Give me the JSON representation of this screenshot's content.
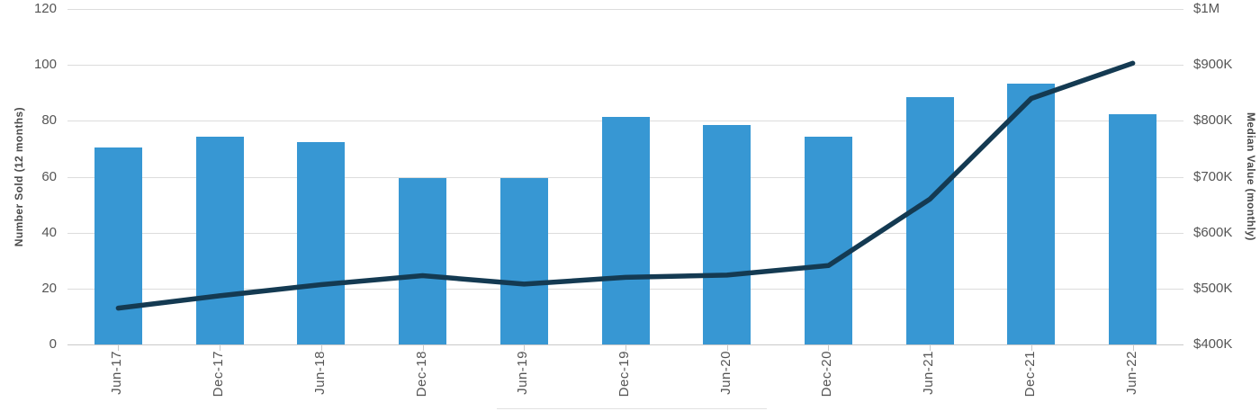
{
  "chart_data": {
    "type": "combo (bar + line)",
    "categories": [
      "Jun-17",
      "Dec-17",
      "Jun-18",
      "Dec-18",
      "Jun-19",
      "Dec-19",
      "Jun-20",
      "Dec-20",
      "Jun-21",
      "Dec-21",
      "Jun-22"
    ],
    "series": [
      {
        "name": "Number Sold (12 months)",
        "type": "bar",
        "axis": "left",
        "values": [
          70.5,
          74.3,
          72.3,
          59.6,
          59.5,
          81.4,
          78.6,
          74.2,
          88.4,
          93.4,
          82.4
        ]
      },
      {
        "name": "Median Value (monthly)",
        "type": "line",
        "axis": "right",
        "unit": "thousand USD",
        "values": [
          465,
          487,
          507,
          523,
          508,
          520,
          524,
          541,
          660,
          840,
          903
        ]
      }
    ],
    "left_axis": {
      "title": "Number Sold (12 months)",
      "range": [
        0,
        120
      ],
      "ticks": [
        "0",
        "20",
        "40",
        "60",
        "80",
        "100",
        "120"
      ]
    },
    "right_axis": {
      "title": "Median Value (monthly)",
      "range_thousand_usd": [
        400,
        1000
      ],
      "ticks": [
        "$400K",
        "$500K",
        "$600K",
        "$700K",
        "$800K",
        "$900K",
        "$1M"
      ]
    },
    "grid": true,
    "legend": "cut off at bottom edge (only top border of legend box visible)"
  },
  "colors": {
    "bar": "#3797d3",
    "line": "#143a52",
    "gridline": "#dcdcdc",
    "axis_line": "#c9c9c9",
    "tick_mark": "#c9c9c9",
    "tick_label": "#555555",
    "axis_title": "#4a4a4a",
    "background": "#ffffff",
    "legend_border": "#e2e2e2"
  }
}
